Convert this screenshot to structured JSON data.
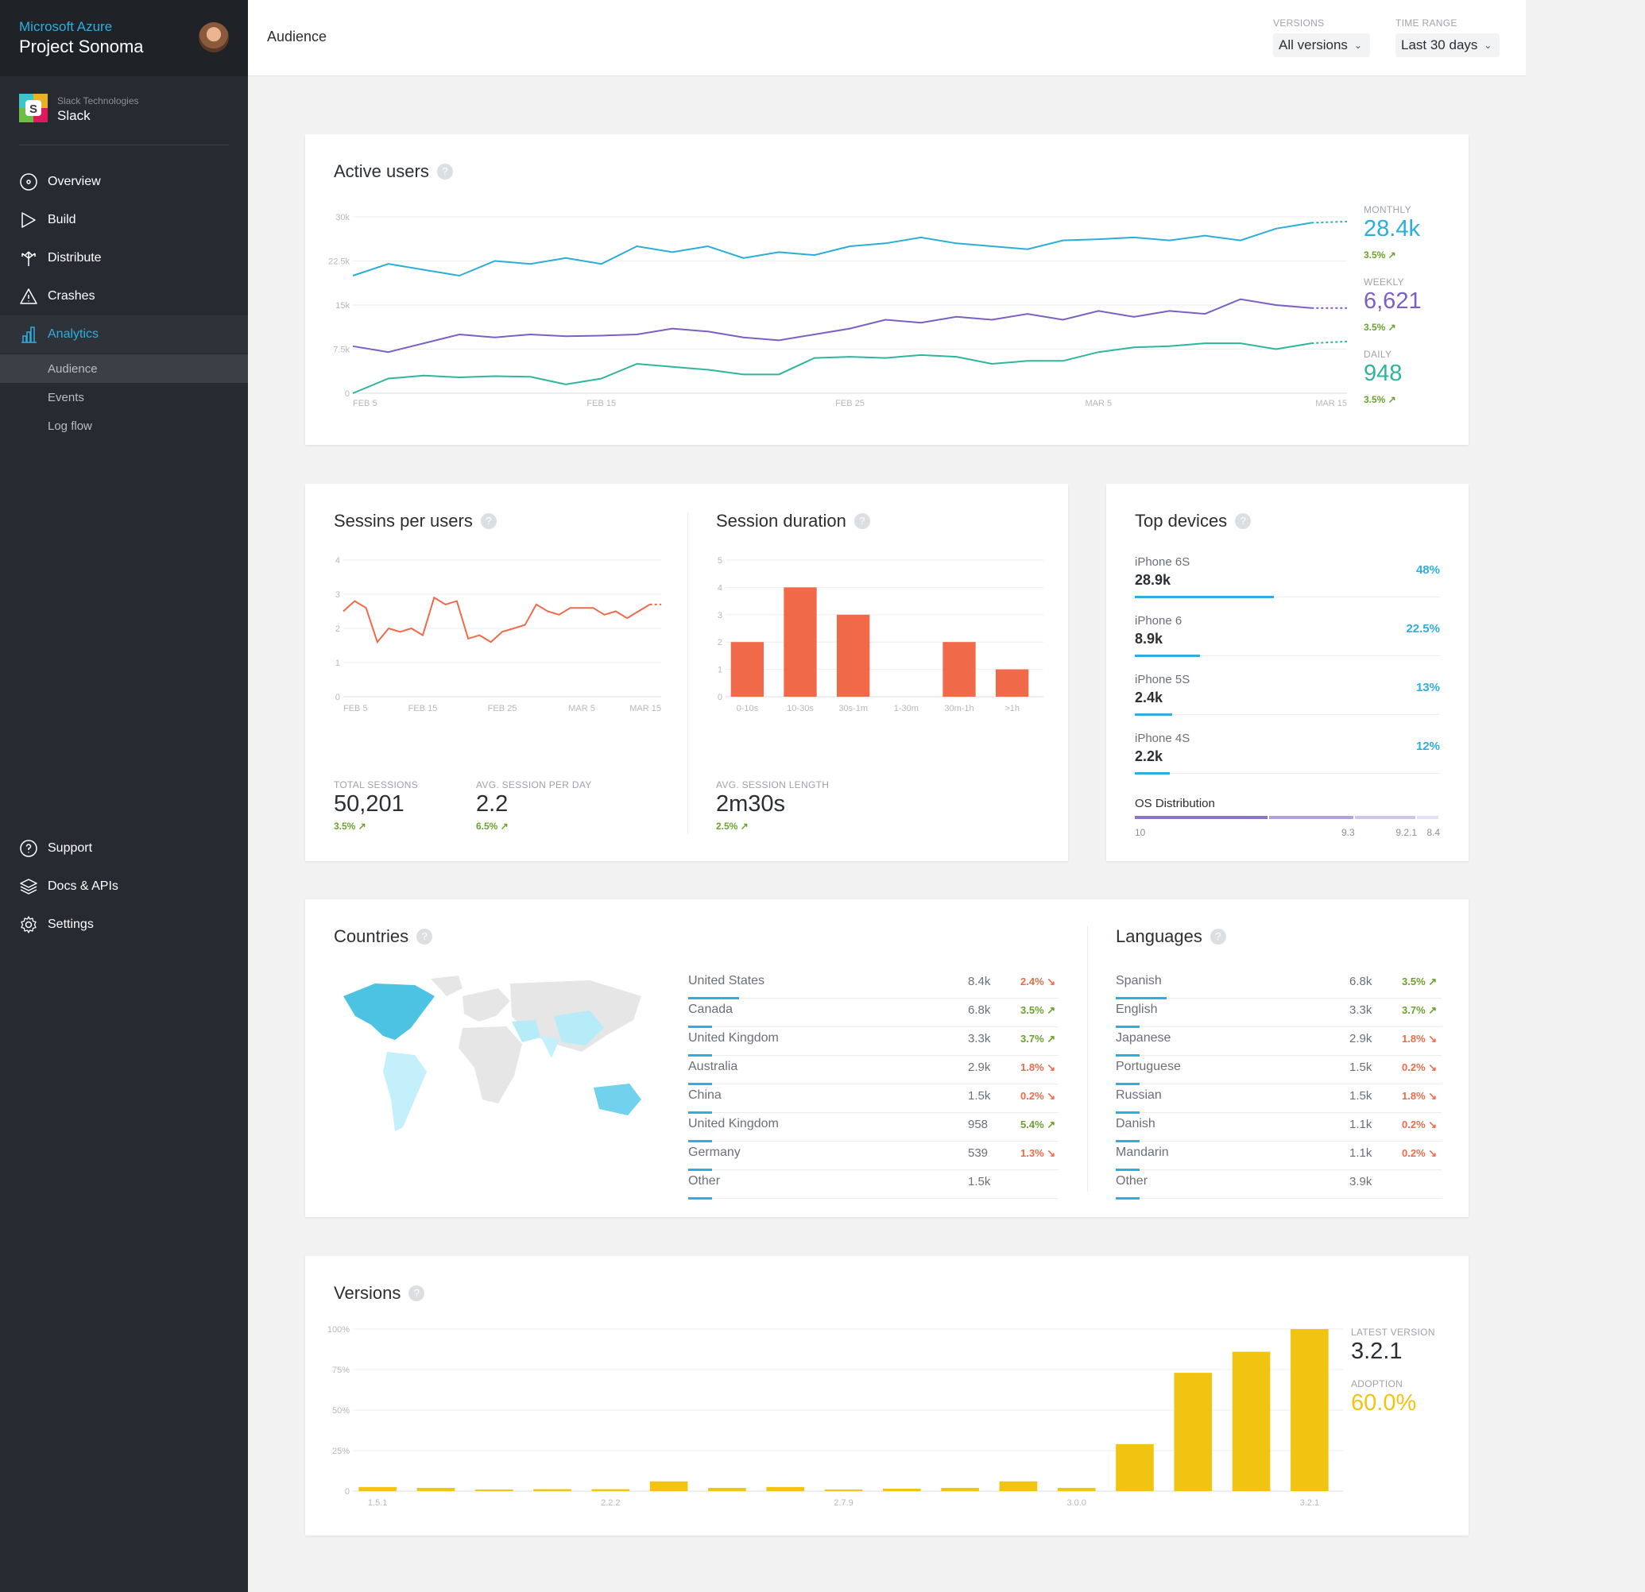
{
  "sidebar": {
    "brand": "Microsoft Azure",
    "project": "Project Sonoma",
    "org_sub": "Slack Technologies",
    "org_name": "Slack",
    "nav": {
      "overview": "Overview",
      "build": "Build",
      "distribute": "Distribute",
      "crashes": "Crashes",
      "analytics": "Analytics",
      "audience": "Audience",
      "events": "Events",
      "log_flow": "Log flow",
      "support": "Support",
      "docs": "Docs & APIs",
      "settings": "Settings"
    }
  },
  "topbar": {
    "title": "Audience",
    "versions_label": "VERSIONS",
    "versions_value": "All versions",
    "range_label": "TIME RANGE",
    "range_value": "Last 30 days"
  },
  "colors": {
    "monthly": "#2aaed8",
    "weekly": "#7b5fc2",
    "daily": "#2fb59d",
    "sessions": "#f06a4a",
    "versions": "#f2c412",
    "accent": "#2eaee0"
  },
  "active_users": {
    "title": "Active users",
    "help": "?",
    "monthly": {
      "label": "MONTHLY",
      "value": "28.4k",
      "delta": "3.5% ↗"
    },
    "weekly": {
      "label": "WEEKLY",
      "value": "6,621",
      "delta": "3.5% ↗"
    },
    "daily": {
      "label": "DAILY",
      "value": "948",
      "delta": "3.5% ↗"
    }
  },
  "sessions": {
    "title": "Sessins per users",
    "help": "?",
    "total_label": "TOTAL SESSIONS",
    "total_value": "50,201",
    "total_delta": "3.5% ↗",
    "avg_label": "AVG. SESSION PER DAY",
    "avg_value": "2.2",
    "avg_delta": "6.5% ↗"
  },
  "duration": {
    "title": "Session duration",
    "help": "?",
    "avg_label": "AVG. SESSION LENGTH",
    "avg_value": "2m30s",
    "avg_delta": "2.5% ↗"
  },
  "devices": {
    "title": "Top devices",
    "help": "?",
    "items": [
      {
        "name": "iPhone 6S",
        "value": "28.9k",
        "pct": "48%",
        "share": 48
      },
      {
        "name": "iPhone 6",
        "value": "8.9k",
        "pct": "22.5%",
        "share": 22.5
      },
      {
        "name": "iPhone 5S",
        "value": "2.4k",
        "pct": "13%",
        "share": 13
      },
      {
        "name": "iPhone 4S",
        "value": "2.2k",
        "pct": "12%",
        "share": 12
      }
    ],
    "os_label": "OS Distribution",
    "os_versions": [
      "10",
      "9.3",
      "9.2.1",
      "8.4"
    ]
  },
  "countries": {
    "title": "Countries",
    "help": "?",
    "rows": [
      {
        "name": "United States",
        "value": "8.4k",
        "delta": "2.4% ↘",
        "dir": "down"
      },
      {
        "name": "Canada",
        "value": "6.8k",
        "delta": "3.5% ↗",
        "dir": "up"
      },
      {
        "name": "United Kingdom",
        "value": "3.3k",
        "delta": "3.7% ↗",
        "dir": "up"
      },
      {
        "name": "Australia",
        "value": "2.9k",
        "delta": "1.8% ↘",
        "dir": "down"
      },
      {
        "name": "China",
        "value": "1.5k",
        "delta": "0.2% ↘",
        "dir": "down"
      },
      {
        "name": "United Kingdom",
        "value": "958",
        "delta": "5.4% ↗",
        "dir": "up"
      },
      {
        "name": "Germany",
        "value": "539",
        "delta": "1.3% ↘",
        "dir": "down"
      },
      {
        "name": "Other",
        "value": "1.5k",
        "delta": "",
        "dir": ""
      }
    ]
  },
  "languages": {
    "title": "Languages",
    "help": "?",
    "rows": [
      {
        "name": "Spanish",
        "value": "6.8k",
        "delta": "3.5% ↗",
        "dir": "up"
      },
      {
        "name": "English",
        "value": "3.3k",
        "delta": "3.7% ↗",
        "dir": "up"
      },
      {
        "name": "Japanese",
        "value": "2.9k",
        "delta": "1.8% ↘",
        "dir": "down"
      },
      {
        "name": "Portuguese",
        "value": "1.5k",
        "delta": "0.2% ↘",
        "dir": "down"
      },
      {
        "name": "Russian",
        "value": "1.5k",
        "delta": "1.8% ↘",
        "dir": "down"
      },
      {
        "name": "Danish",
        "value": "1.1k",
        "delta": "0.2% ↘",
        "dir": "down"
      },
      {
        "name": "Mandarin",
        "value": "1.1k",
        "delta": "0.2% ↘",
        "dir": "down"
      },
      {
        "name": "Other",
        "value": "3.9k",
        "delta": "",
        "dir": ""
      }
    ]
  },
  "versions": {
    "title": "Versions",
    "help": "?",
    "latest_label": "LATEST VERSION",
    "latest_value": "3.2.1",
    "adoption_label": "ADOPTION",
    "adoption_value": "60.0%"
  },
  "chart_data": [
    {
      "type": "line",
      "title": "Active users",
      "x": [
        "FEB 5",
        "",
        "",
        "",
        "",
        "",
        "",
        "FEB 15",
        "",
        "",
        "",
        "",
        "",
        "",
        "FEB 25",
        "",
        "",
        "",
        "",
        "",
        "",
        "MAR 5",
        "",
        "",
        "",
        "",
        "",
        "",
        "MAR 15"
      ],
      "xticks": [
        "FEB 5",
        "FEB 15",
        "FEB 25",
        "MAR 5",
        "MAR 15"
      ],
      "yticks": [
        "0",
        "7.5k",
        "15k",
        "22.5k",
        "30k"
      ],
      "ylim": [
        0,
        30000
      ],
      "series": [
        {
          "name": "MONTHLY",
          "values": [
            20000,
            22000,
            21000,
            20000,
            22500,
            22000,
            23000,
            22000,
            25000,
            24000,
            25000,
            23000,
            24000,
            23500,
            25000,
            25500,
            26500,
            25500,
            25000,
            24500,
            26000,
            26200,
            26500,
            26000,
            26800,
            26000,
            28000,
            29000,
            29200
          ]
        },
        {
          "name": "WEEKLY",
          "values": [
            8000,
            7000,
            8500,
            10000,
            9500,
            10000,
            9700,
            9800,
            10000,
            11000,
            10500,
            9500,
            9000,
            10000,
            11000,
            12500,
            12000,
            13000,
            12500,
            13500,
            12500,
            14000,
            13000,
            14000,
            13500,
            16000,
            15000,
            14500,
            14500
          ]
        },
        {
          "name": "DAILY",
          "values": [
            0,
            2500,
            3000,
            2700,
            2900,
            2800,
            1500,
            2500,
            5000,
            4500,
            4000,
            3200,
            3200,
            6000,
            6200,
            6000,
            6500,
            6200,
            5000,
            5500,
            5500,
            7000,
            7800,
            8000,
            8500,
            8500,
            7500,
            8500,
            8800
          ]
        }
      ]
    },
    {
      "type": "line",
      "title": "Sessins per users",
      "xticks": [
        "FEB 5",
        "FEB 15",
        "FEB 25",
        "MAR 5",
        "MAR 15"
      ],
      "yticks": [
        "0",
        "1",
        "2",
        "3",
        "4"
      ],
      "ylim": [
        0,
        4
      ],
      "series": [
        {
          "name": "Sessions",
          "values": [
            2.5,
            2.8,
            2.6,
            1.6,
            2.0,
            1.9,
            2.0,
            1.8,
            2.9,
            2.7,
            2.8,
            1.7,
            1.8,
            1.6,
            1.9,
            2.0,
            2.1,
            2.7,
            2.5,
            2.4,
            2.6,
            2.6,
            2.6,
            2.4,
            2.5,
            2.3,
            2.5,
            2.7,
            2.7
          ]
        }
      ]
    },
    {
      "type": "bar",
      "title": "Session duration",
      "categories": [
        "0-10s",
        "10-30s",
        "30s-1m",
        "1-30m",
        "30m-1h",
        ">1h"
      ],
      "values": [
        2,
        4,
        3,
        0,
        2,
        1
      ],
      "yticks": [
        "0",
        "1",
        "2",
        "3",
        "4",
        "5"
      ],
      "ylim": [
        0,
        5
      ]
    },
    {
      "type": "bar",
      "title": "Versions",
      "categories": [
        "1.5.1",
        "",
        "",
        "",
        "2.2.2",
        "",
        "",
        "",
        "2.7.9",
        "",
        "",
        "",
        "3.0.0",
        "",
        "",
        "",
        "3.2.1"
      ],
      "xticks": [
        "1.5.1",
        "2.2.2",
        "2.7.9",
        "3.0.0",
        "3.2.1"
      ],
      "values": [
        2.5,
        2,
        1,
        1.2,
        1.2,
        6,
        2,
        2.5,
        1,
        1.5,
        2,
        6,
        2,
        29,
        73,
        86,
        100
      ],
      "yticks": [
        "0",
        "25%",
        "50%",
        "75%",
        "100%"
      ],
      "ylim": [
        0,
        100
      ]
    },
    {
      "type": "bar",
      "title": "OS Distribution",
      "categories": [
        "10",
        "9.3",
        "9.2.1",
        "8.4"
      ],
      "values": [
        41,
        26,
        19,
        7
      ]
    }
  ]
}
